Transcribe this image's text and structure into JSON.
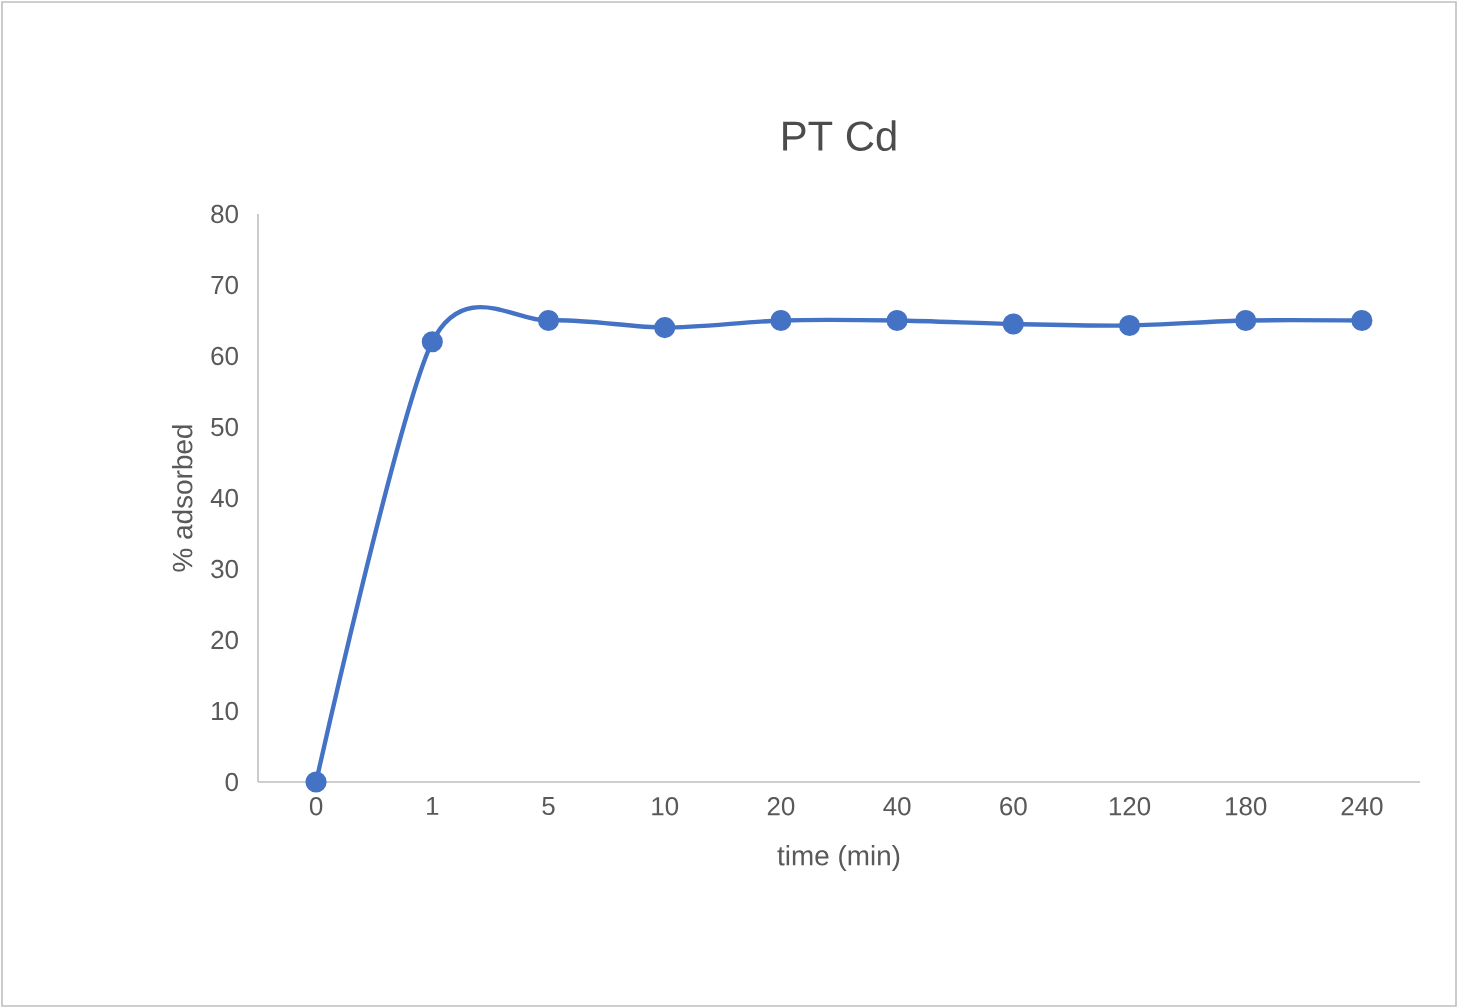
{
  "chart_data": {
    "type": "line",
    "title": "PT Cd",
    "xlabel": "time (min)",
    "ylabel": "% adsorbed",
    "categories": [
      "0",
      "1",
      "5",
      "10",
      "20",
      "40",
      "60",
      "120",
      "180",
      "240"
    ],
    "series": [
      {
        "color": "#4472c4",
        "values": [
          0,
          62,
          65,
          64,
          65,
          65,
          64.5,
          64.3,
          65,
          65
        ]
      }
    ],
    "ylim": [
      0,
      80
    ],
    "yticks": [
      0,
      10,
      20,
      30,
      40,
      50,
      60,
      70,
      80
    ],
    "grid": false,
    "marker": "circle",
    "line_style": "solid"
  }
}
